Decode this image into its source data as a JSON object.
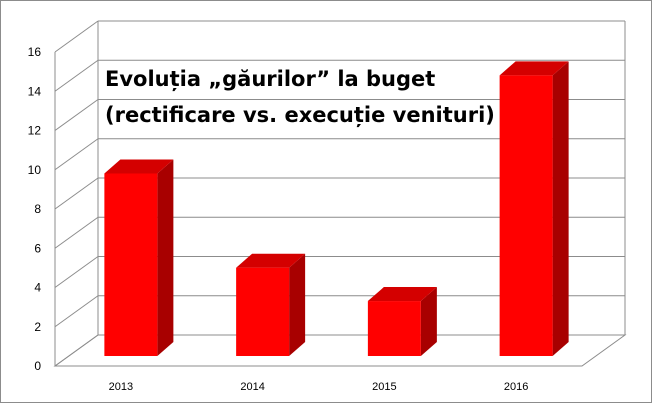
{
  "chart_data": {
    "type": "bar",
    "title_lines": [
      "Evoluția „găurilor” la buget",
      "(rectificare vs. execuție venituri)"
    ],
    "categories": [
      "2013",
      "2014",
      "2015",
      "2016"
    ],
    "values": [
      9.3,
      4.5,
      2.8,
      14.3
    ],
    "ylim": [
      0,
      16
    ],
    "ytick_step": 2,
    "yticks": [
      "0",
      "2",
      "4",
      "6",
      "8",
      "10",
      "12",
      "14",
      "16"
    ],
    "grid": true,
    "three_d": true,
    "colors": {
      "bar_front": "#ff0000",
      "bar_side": "#a80000",
      "bar_top": "#d40000",
      "grid": "#8c8c8c"
    }
  }
}
